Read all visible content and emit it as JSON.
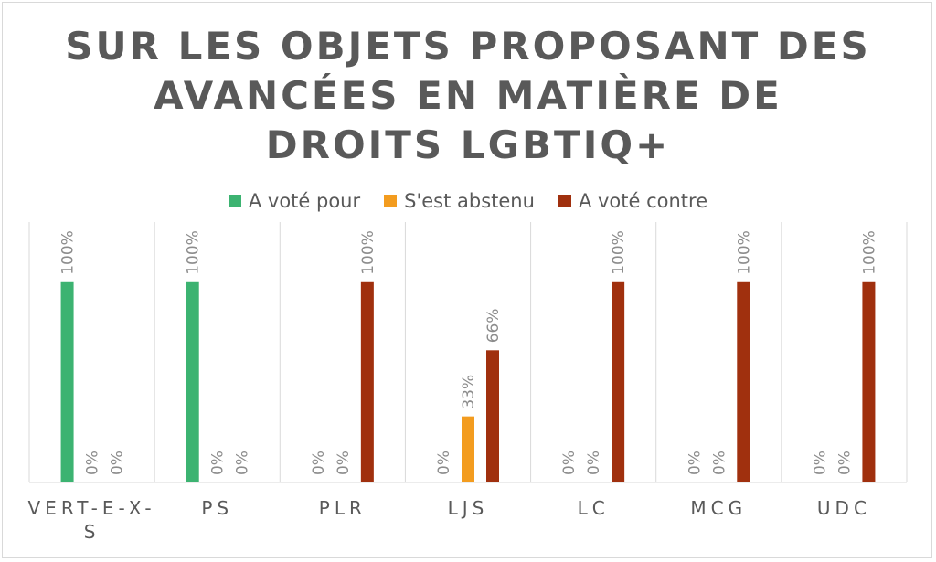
{
  "chart_data": {
    "type": "bar",
    "title": "SUR LES OBJETS PROPOSANT DES AVANCÉES EN MATIÈRE DE DROITS LGBTIQ+",
    "title_lines": [
      "SUR LES OBJETS PROPOSANT DES",
      "AVANCÉES EN MATIÈRE DE",
      "DROITS LGBTIQ+"
    ],
    "categories": [
      "VERT-E-X-S",
      "PS",
      "PLR",
      "LJS",
      "LC",
      "MCG",
      "UDC"
    ],
    "category_label_lines": [
      [
        "VERT-E-X-",
        "S"
      ],
      [
        "PS"
      ],
      [
        "PLR"
      ],
      [
        "LJS"
      ],
      [
        "LC"
      ],
      [
        "MCG"
      ],
      [
        "UDC"
      ]
    ],
    "series": [
      {
        "name": "A voté pour",
        "color": "#3cb371",
        "values": [
          1.0,
          1.0,
          0,
          0,
          0,
          0,
          0
        ],
        "labels": [
          "100%",
          "100%",
          "0%",
          "0%",
          "0%",
          "0%",
          "0%"
        ]
      },
      {
        "name": "S'est abstenu",
        "color": "#f39c1f",
        "values": [
          0,
          0,
          0,
          0.33,
          0,
          0,
          0
        ],
        "labels": [
          "0%",
          "0%",
          "0%",
          "33%",
          "0%",
          "0%",
          "0%"
        ]
      },
      {
        "name": "A voté contre",
        "color": "#a0300e",
        "values": [
          0,
          0,
          1.0,
          0.66,
          1.0,
          1.0,
          1.0
        ],
        "labels": [
          "0%",
          "0%",
          "100%",
          "66%",
          "100%",
          "100%",
          "100%"
        ]
      }
    ],
    "ylim": [
      0,
      1.3
    ],
    "legend_position": "top",
    "grid": "vertical category separators",
    "data_labels": "rotated vertical"
  }
}
